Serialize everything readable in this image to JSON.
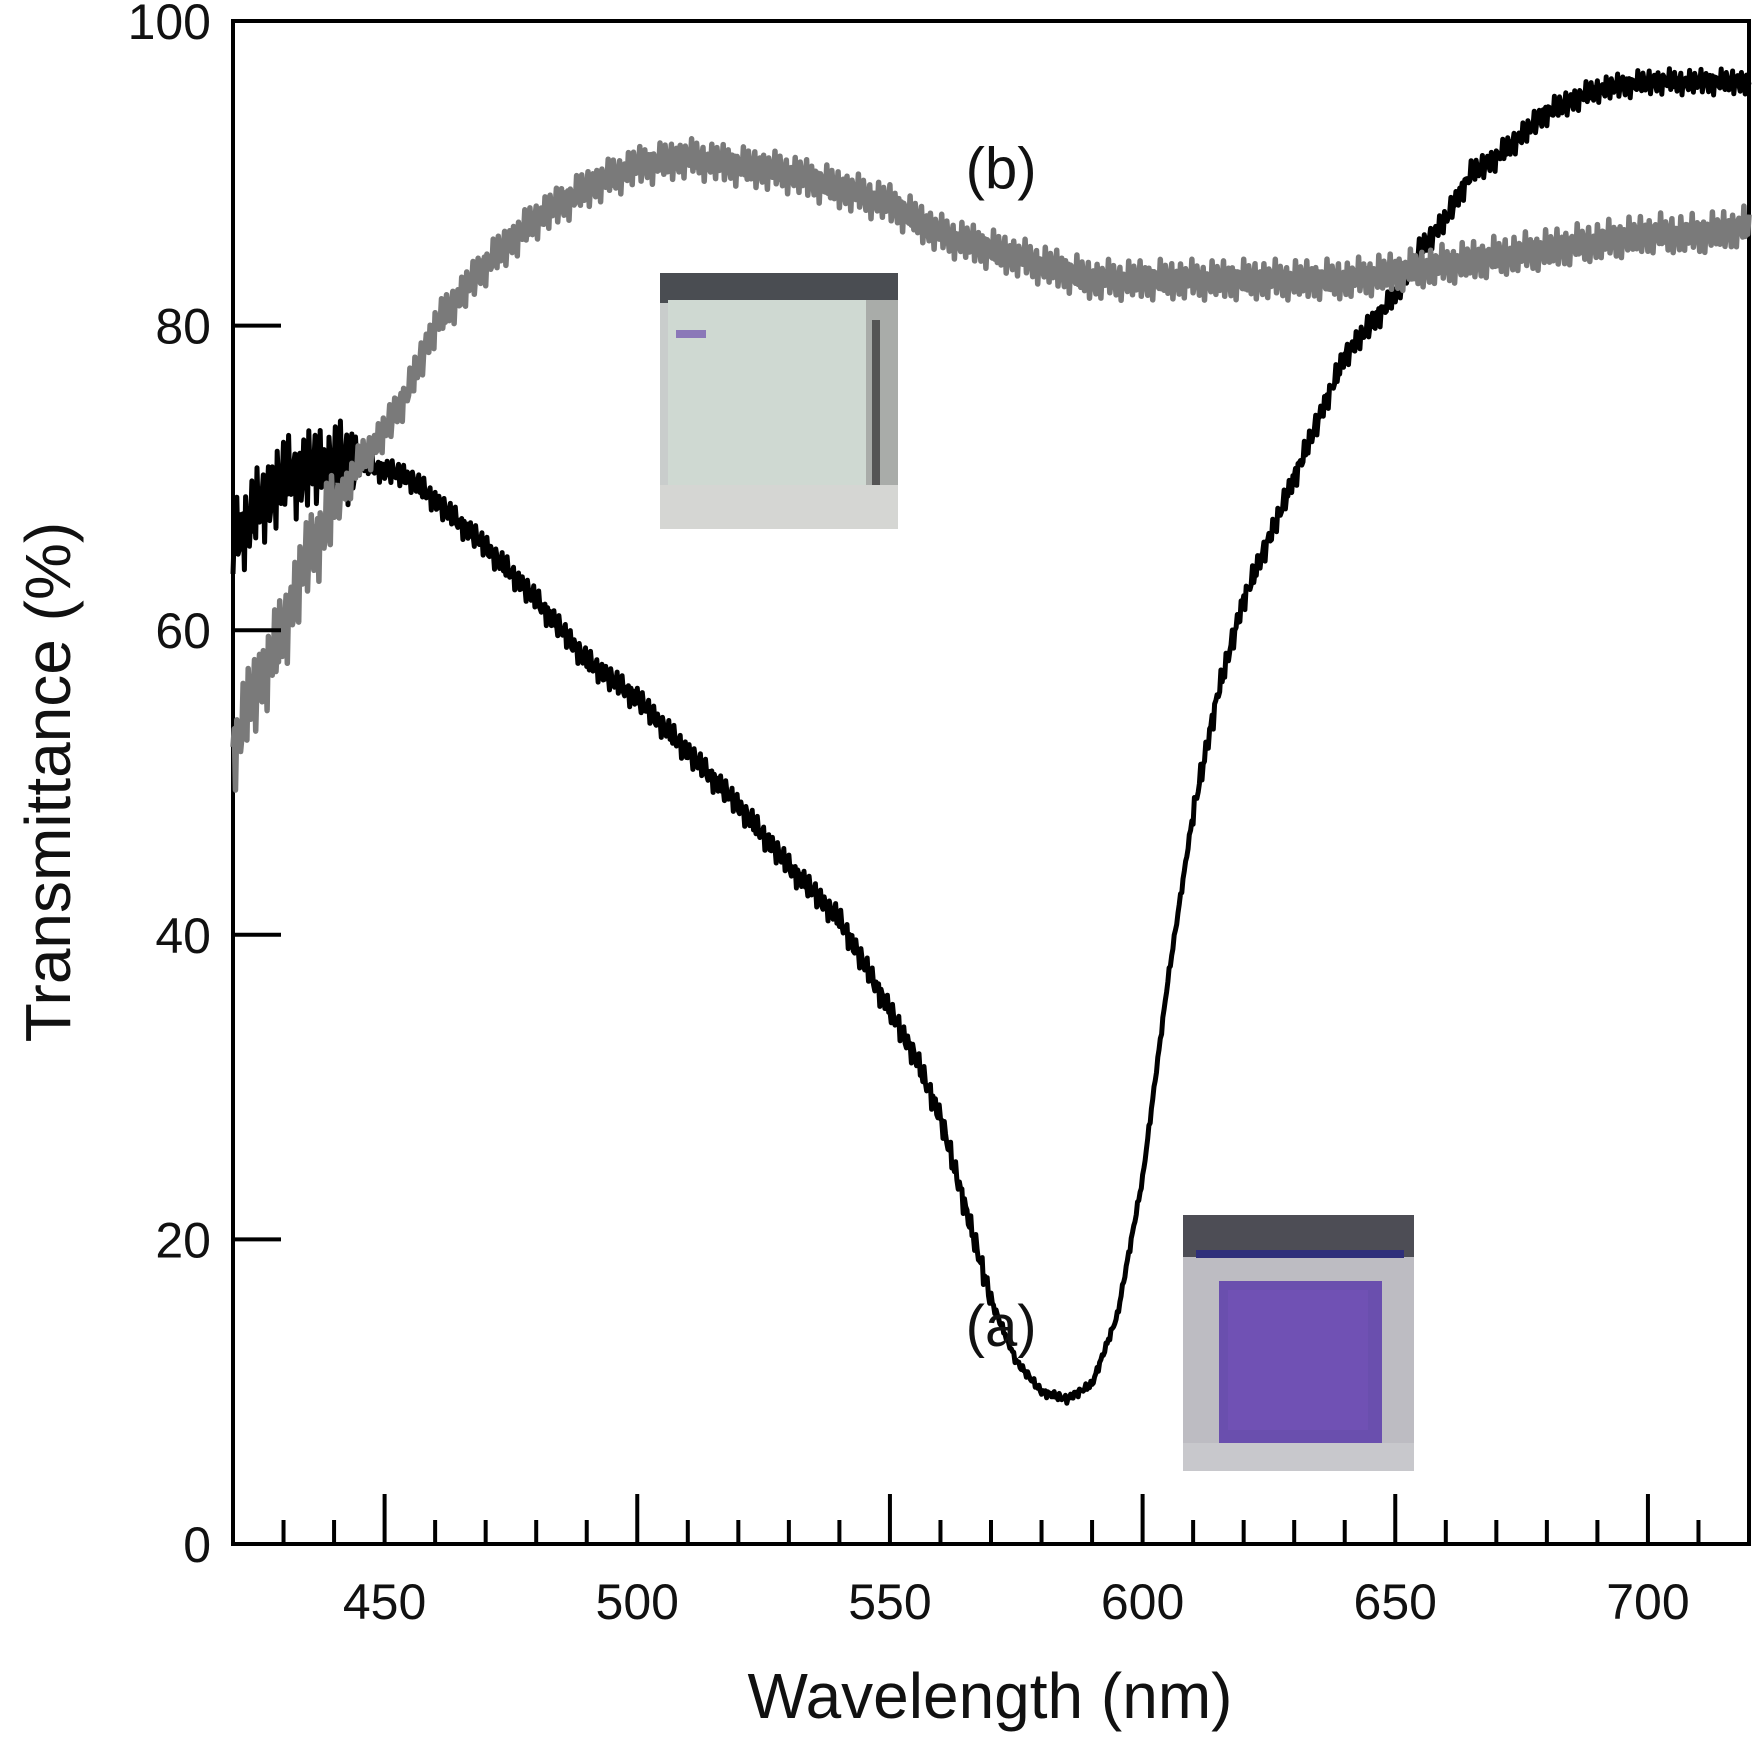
{
  "chart_data": {
    "type": "line",
    "title": "",
    "xlabel": "Wavelength (nm)",
    "ylabel": "Transmittance (%)",
    "xlim": [
      420,
      720
    ],
    "ylim": [
      0,
      100
    ],
    "xticks": [
      450,
      500,
      550,
      600,
      650,
      700
    ],
    "yticks": [
      0,
      20,
      40,
      60,
      80,
      100
    ],
    "x_minor_step": 10,
    "grid": false,
    "legend": "none",
    "series": [
      {
        "name": "(a)",
        "color": "#000000",
        "x": [
          420,
          425,
          430,
          435,
          440,
          445,
          450,
          455,
          460,
          465,
          470,
          480,
          490,
          500,
          510,
          520,
          530,
          540,
          550,
          555,
          560,
          565,
          570,
          575,
          580,
          585,
          590,
          595,
          600,
          605,
          610,
          615,
          620,
          625,
          630,
          635,
          640,
          645,
          650,
          655,
          660,
          665,
          670,
          680,
          690,
          700,
          710,
          720
        ],
        "y": [
          66,
          68,
          70,
          70.5,
          71,
          71,
          70.5,
          70,
          68.5,
          67,
          65.5,
          62,
          58,
          55.5,
          52,
          48.5,
          44.5,
          41,
          35,
          32,
          28,
          22,
          16,
          12,
          10,
          9.5,
          10.5,
          15,
          24,
          37,
          48,
          56,
          62,
          66,
          70,
          74,
          78,
          80,
          82,
          85,
          87,
          90,
          91,
          94,
          95.5,
          96,
          96,
          96
        ],
        "annotation": "(a)",
        "annotation_at": [
          572,
          13
        ]
      },
      {
        "name": "(b)",
        "color": "#7a7a7a",
        "x": [
          420,
          423,
          426,
          430,
          435,
          440,
          445,
          450,
          455,
          460,
          465,
          470,
          480,
          490,
          500,
          510,
          520,
          530,
          540,
          550,
          560,
          570,
          580,
          590,
          600,
          610,
          620,
          630,
          640,
          650,
          660,
          670,
          680,
          690,
          700,
          710,
          720
        ],
        "y": [
          52,
          55,
          57,
          60,
          65,
          68,
          71,
          73,
          76,
          80,
          82,
          84,
          87,
          89,
          90.5,
          91,
          90.5,
          90,
          89,
          88,
          86,
          85,
          84,
          83,
          83,
          83,
          83,
          83,
          83,
          83.5,
          84,
          84.5,
          85,
          85.5,
          86,
          86,
          86.5
        ],
        "annotation": "(b)",
        "annotation_at": [
          572,
          89
        ]
      }
    ]
  }
}
